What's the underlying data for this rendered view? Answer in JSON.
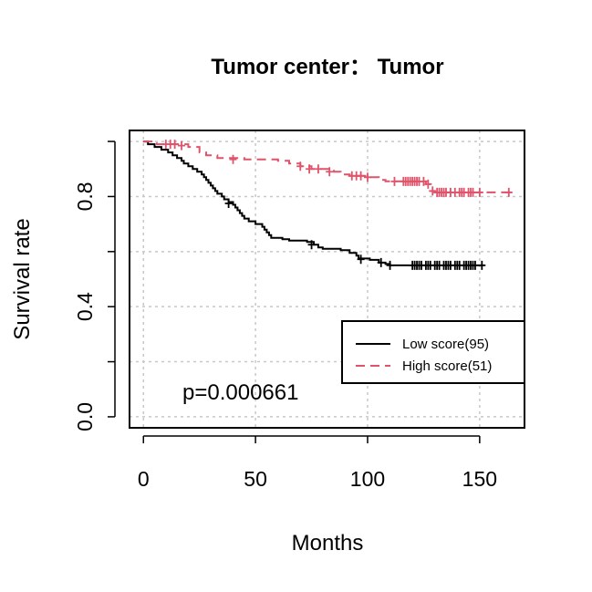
{
  "chart_data": {
    "type": "line",
    "title": "Tumor center： Tumor",
    "xlabel": "Months",
    "ylabel": "Survival rate",
    "xlim": [
      -6.2,
      170
    ],
    "ylim": [
      -0.04,
      1.04
    ],
    "x_ticks": [
      0,
      50,
      100,
      150
    ],
    "x_tick_labels": [
      "0",
      "50",
      "100",
      "150"
    ],
    "y_ticks": [
      0.0,
      0.2,
      0.4,
      0.6,
      0.8,
      1.0
    ],
    "y_tick_labels": [
      "0.0",
      "",
      "0.4",
      "",
      "0.8",
      ""
    ],
    "grid": true,
    "legend_position": "lower-right",
    "annotation": "p=0.000661",
    "series": [
      {
        "name": "Low score(95)",
        "color": "#000000",
        "dash": "solid",
        "steps": [
          [
            0,
            1.0
          ],
          [
            2,
            0.99
          ],
          [
            5,
            0.98
          ],
          [
            8,
            0.97
          ],
          [
            11,
            0.96
          ],
          [
            13,
            0.95
          ],
          [
            15,
            0.94
          ],
          [
            17,
            0.93
          ],
          [
            18,
            0.92
          ],
          [
            20,
            0.91
          ],
          [
            22,
            0.9
          ],
          [
            24,
            0.89
          ],
          [
            26,
            0.88
          ],
          [
            27,
            0.87
          ],
          [
            28,
            0.86
          ],
          [
            29,
            0.85
          ],
          [
            30,
            0.84
          ],
          [
            31,
            0.83
          ],
          [
            32,
            0.82
          ],
          [
            33,
            0.81
          ],
          [
            35,
            0.8
          ],
          [
            36,
            0.79
          ],
          [
            38,
            0.78
          ],
          [
            40,
            0.77
          ],
          [
            41,
            0.76
          ],
          [
            42,
            0.75
          ],
          [
            43,
            0.74
          ],
          [
            44,
            0.73
          ],
          [
            45,
            0.72
          ],
          [
            47,
            0.71
          ],
          [
            50,
            0.7
          ],
          [
            53,
            0.69
          ],
          [
            54,
            0.68
          ],
          [
            55,
            0.67
          ],
          [
            56,
            0.66
          ],
          [
            57,
            0.65
          ],
          [
            62,
            0.645
          ],
          [
            65,
            0.64
          ],
          [
            73,
            0.635
          ],
          [
            76,
            0.625
          ],
          [
            78,
            0.615
          ],
          [
            80,
            0.61
          ],
          [
            88,
            0.605
          ],
          [
            92,
            0.595
          ],
          [
            95,
            0.585
          ],
          [
            96,
            0.575
          ],
          [
            101,
            0.57
          ],
          [
            105,
            0.56
          ],
          [
            108,
            0.555
          ],
          [
            110,
            0.55
          ],
          [
            152,
            0.55
          ]
        ],
        "censored": [
          [
            38,
            0.775
          ],
          [
            75,
            0.625
          ],
          [
            97,
            0.572
          ],
          [
            106,
            0.56
          ],
          [
            110,
            0.55
          ],
          [
            120,
            0.55
          ],
          [
            121,
            0.55
          ],
          [
            122,
            0.55
          ],
          [
            123,
            0.55
          ],
          [
            124,
            0.55
          ],
          [
            126,
            0.55
          ],
          [
            127,
            0.55
          ],
          [
            128,
            0.55
          ],
          [
            130,
            0.55
          ],
          [
            131,
            0.55
          ],
          [
            132,
            0.55
          ],
          [
            134,
            0.55
          ],
          [
            135,
            0.55
          ],
          [
            136,
            0.55
          ],
          [
            137,
            0.55
          ],
          [
            139,
            0.55
          ],
          [
            140,
            0.55
          ],
          [
            141,
            0.55
          ],
          [
            143,
            0.55
          ],
          [
            144,
            0.55
          ],
          [
            145,
            0.55
          ],
          [
            146,
            0.55
          ],
          [
            147,
            0.55
          ],
          [
            148,
            0.55
          ],
          [
            151,
            0.55
          ]
        ]
      },
      {
        "name": "High score(51)",
        "color": "#DF536B",
        "dash": "dashed",
        "steps": [
          [
            0,
            1.0
          ],
          [
            6,
            0.99
          ],
          [
            20,
            0.98
          ],
          [
            25,
            0.96
          ],
          [
            28,
            0.95
          ],
          [
            33,
            0.94
          ],
          [
            45,
            0.935
          ],
          [
            60,
            0.93
          ],
          [
            65,
            0.92
          ],
          [
            70,
            0.91
          ],
          [
            75,
            0.9
          ],
          [
            85,
            0.89
          ],
          [
            88,
            0.88
          ],
          [
            92,
            0.875
          ],
          [
            99,
            0.87
          ],
          [
            105,
            0.86
          ],
          [
            108,
            0.855
          ],
          [
            126,
            0.845
          ],
          [
            128,
            0.82
          ],
          [
            130,
            0.815
          ],
          [
            165,
            0.815
          ]
        ],
        "censored": [
          [
            10,
            0.99
          ],
          [
            12,
            0.99
          ],
          [
            14,
            0.99
          ],
          [
            17,
            0.985
          ],
          [
            40,
            0.935
          ],
          [
            70,
            0.91
          ],
          [
            74,
            0.9
          ],
          [
            78,
            0.9
          ],
          [
            83,
            0.89
          ],
          [
            93,
            0.875
          ],
          [
            95,
            0.875
          ],
          [
            97,
            0.875
          ],
          [
            100,
            0.87
          ],
          [
            112,
            0.855
          ],
          [
            116,
            0.855
          ],
          [
            117,
            0.855
          ],
          [
            118,
            0.855
          ],
          [
            119,
            0.855
          ],
          [
            120,
            0.855
          ],
          [
            121,
            0.855
          ],
          [
            122,
            0.855
          ],
          [
            123,
            0.855
          ],
          [
            125,
            0.855
          ],
          [
            127,
            0.845
          ],
          [
            129,
            0.82
          ],
          [
            131,
            0.815
          ],
          [
            132,
            0.815
          ],
          [
            133,
            0.815
          ],
          [
            134,
            0.815
          ],
          [
            135,
            0.815
          ],
          [
            137,
            0.815
          ],
          [
            139,
            0.815
          ],
          [
            141,
            0.815
          ],
          [
            142,
            0.815
          ],
          [
            143,
            0.815
          ],
          [
            145,
            0.815
          ],
          [
            146,
            0.815
          ],
          [
            147,
            0.815
          ],
          [
            150,
            0.815
          ],
          [
            163,
            0.815
          ]
        ]
      }
    ]
  }
}
